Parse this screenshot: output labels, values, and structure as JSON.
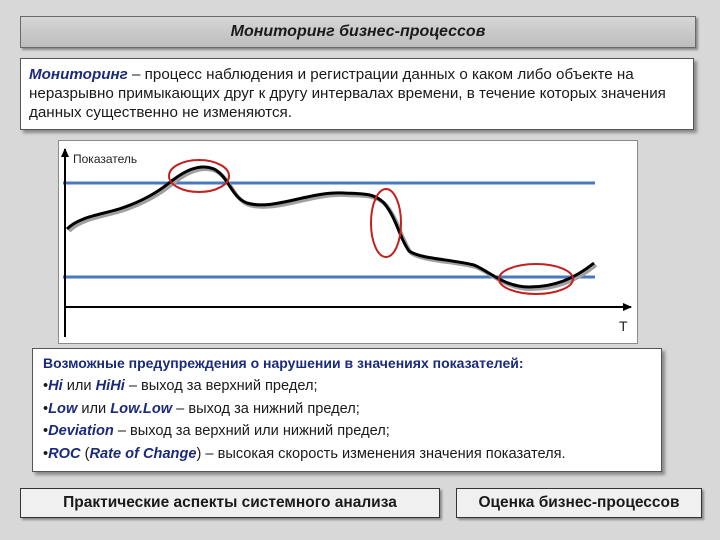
{
  "title": "Мониторинг бизнес-процессов",
  "definition": {
    "term": "Мониторинг",
    "text": " – процесс наблюдения и регистрации данных о каком либо объекте на неразрывно примыкающих друг к другу интервалах времени, в течение которых значения данных существенно не изменяются."
  },
  "chart": {
    "ylabel": "Показатель",
    "xlabel": "T",
    "colors": {
      "limit_lines": "#4a78c0",
      "curve": "#000000",
      "highlights": "#c42020"
    }
  },
  "warnings": {
    "title": "Возможные предупреждения о нарушении в значениях показателей:",
    "items": [
      {
        "bullet": "•",
        "code": "Hi",
        "mid": " или ",
        "code2": "HiHi",
        "rest": " – выход за верхний предел;"
      },
      {
        "bullet": "•",
        "code": "Low",
        "mid": " или ",
        "code2": "Low.Low",
        "rest": " – выход за нижний предел;"
      },
      {
        "bullet": "•",
        "code": "Deviation",
        "mid": "",
        "code2": "",
        "rest": " – выход за верхний или нижний предел;"
      },
      {
        "bullet": "•",
        "code": "ROC",
        "mid": " (",
        "code2": "Rate of Change",
        "rest": ") – высокая скорость изменения значения показателя."
      }
    ]
  },
  "footer": {
    "left": "Практические аспекты системного анализа",
    "right": "Оценка бизнес-процессов"
  }
}
